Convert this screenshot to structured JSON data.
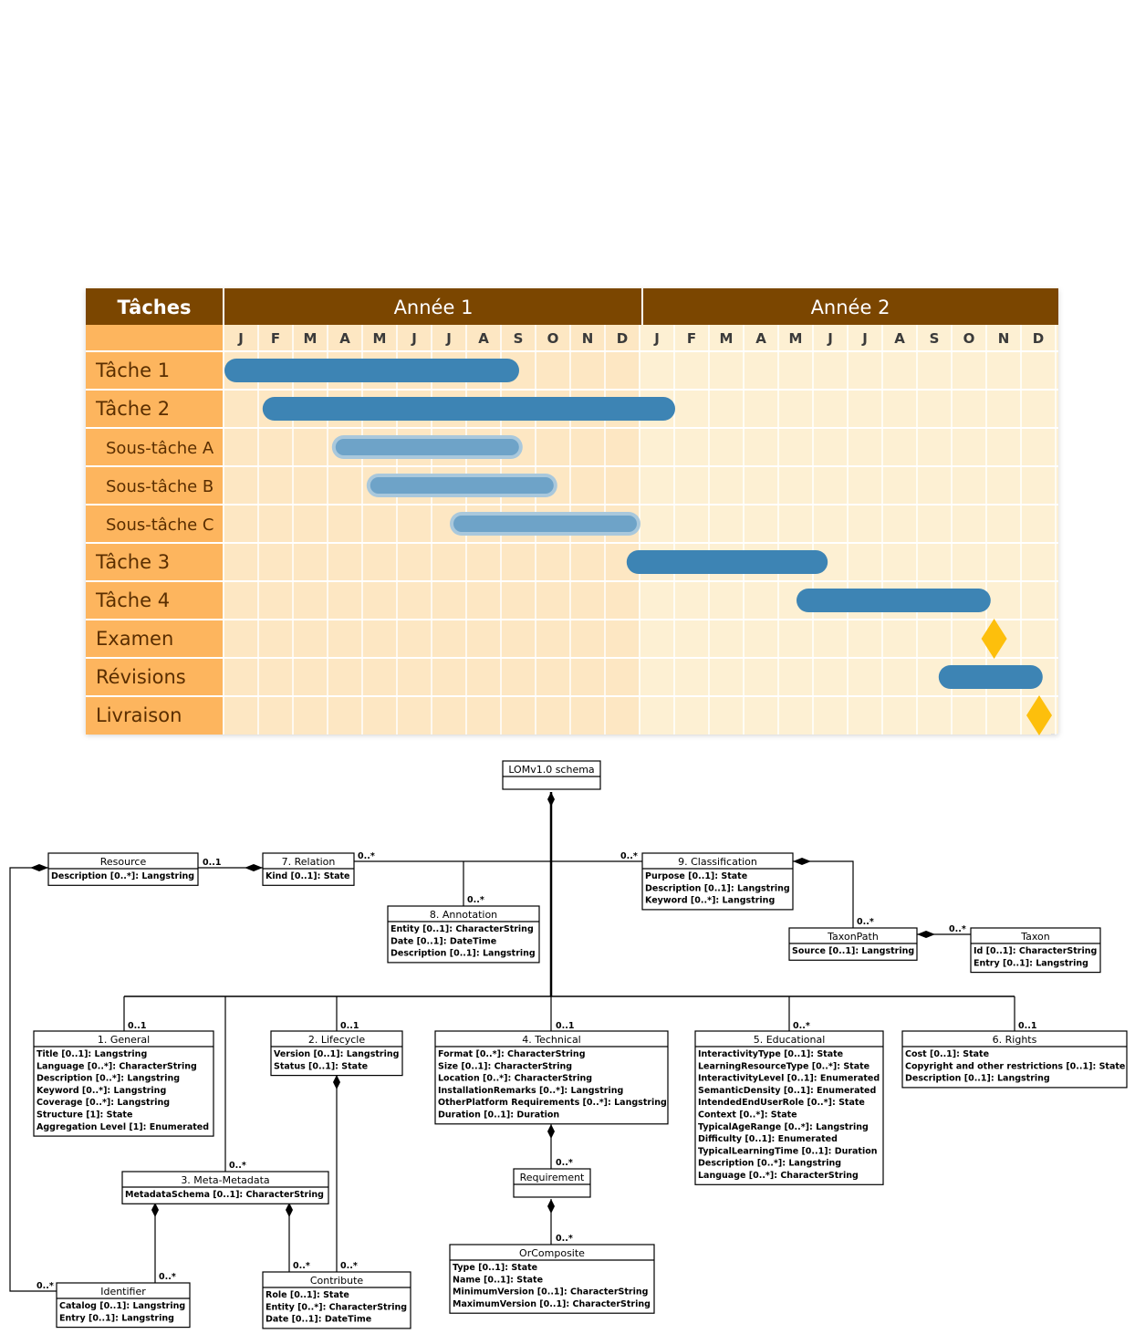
{
  "gantt": {
    "header": {
      "tasks": "Tâches",
      "year1": "Année 1",
      "year2": "Année 2"
    },
    "months": [
      "J",
      "F",
      "M",
      "A",
      "M",
      "J",
      "J",
      "A",
      "S",
      "O",
      "N",
      "D",
      "J",
      "F",
      "M",
      "A",
      "M",
      "J",
      "J",
      "A",
      "S",
      "O",
      "N",
      "D"
    ],
    "rows": [
      {
        "label": "Tâche 1",
        "kind": "task",
        "start": 0.0,
        "end": 8.5
      },
      {
        "label": "Tâche 2",
        "kind": "task",
        "start": 1.1,
        "end": 13.0
      },
      {
        "label": "Sous-tâche A",
        "kind": "subtask",
        "start": 3.1,
        "end": 8.6
      },
      {
        "label": "Sous-tâche B",
        "kind": "subtask",
        "start": 4.1,
        "end": 9.6
      },
      {
        "label": "Sous-tâche C",
        "kind": "subtask",
        "start": 6.5,
        "end": 12.0
      },
      {
        "label": "Tâche 3",
        "kind": "task",
        "start": 11.6,
        "end": 17.4
      },
      {
        "label": "Tâche 4",
        "kind": "task",
        "start": 16.5,
        "end": 22.1
      },
      {
        "label": "Examen",
        "kind": "milestone",
        "at": 22.2
      },
      {
        "label": "Révisions",
        "kind": "task",
        "start": 20.6,
        "end": 23.6
      },
      {
        "label": "Livraison",
        "kind": "milestone",
        "at": 23.5
      }
    ],
    "colors": {
      "header": "#7b4600",
      "label_bg": "#fdb55e",
      "grid_year1": "#fde7c3",
      "grid_year2": "#fdf0d3",
      "task_bar": "#3d84b4",
      "subtask_bar": "#6ea3c8",
      "milestone": "#fdbf0c"
    }
  },
  "uml": {
    "classes": [
      {
        "id": "lom",
        "title": "LOMv1.0 schema",
        "attrs": []
      },
      {
        "id": "resource",
        "title": "Resource",
        "attrs": [
          "Description [0..*]: Langstring"
        ]
      },
      {
        "id": "relation",
        "title": "7. Relation",
        "attrs": [
          "Kind [0..1]: State"
        ]
      },
      {
        "id": "annotation",
        "title": "8. Annotation",
        "attrs": [
          "Entity [0..1]: CharacterString",
          "Date [0..1]: DateTime",
          "Description [0..1]: Langstring"
        ]
      },
      {
        "id": "classification",
        "title": "9. Classification",
        "attrs": [
          "Purpose [0..1]: State",
          "Description [0..1]: Langstring",
          "Keyword [0..*]: Langstring"
        ]
      },
      {
        "id": "taxonpath",
        "title": "TaxonPath",
        "attrs": [
          "Source [0..1]: Langstring"
        ]
      },
      {
        "id": "taxon",
        "title": "Taxon",
        "attrs": [
          "Id [0..1]: CharacterString",
          "Entry [0..1]: Langstring"
        ]
      },
      {
        "id": "general",
        "title": "1. General",
        "attrs": [
          "Title [0..1]: Langstring",
          "Language [0..*]: CharacterString",
          "Description [0..*]: Langstring",
          "Keyword [0..*]: Langstring",
          "Coverage [0..*]: Langstring",
          "Structure [1]: State",
          "Aggregation Level [1]: Enumerated"
        ]
      },
      {
        "id": "lifecycle",
        "title": "2. Lifecycle",
        "attrs": [
          "Version [0..1]: Langstring",
          "Status [0..1]: State"
        ]
      },
      {
        "id": "technical",
        "title": "4. Technical",
        "attrs": [
          "Format [0..*]: CharacterString",
          "Size [0..1]: CharacterString",
          "Location [0..*]: CharacterString",
          "InstallationRemarks [0..*]: Langstring",
          "OtherPlatform Requirements [0..*]: Langstring",
          "Duration [0..1]: Duration"
        ]
      },
      {
        "id": "educational",
        "title": "5. Educational",
        "attrs": [
          "InteractivityType [0..1]: State",
          "LearningResourceType [0..*]: State",
          "InteractivityLevel [0..1]: Enumerated",
          "SemanticDensity [0..1]: Enumerated",
          "IntendedEndUserRole [0..*]: State",
          "Context [0..*]: State",
          "TypicalAgeRange [0..*]: Langstring",
          "Difficulty [0..1]: Enumerated",
          "TypicalLearningTime [0..1]: Duration",
          "Description [0..*]: Langstring",
          "Language [0..*]: CharacterString"
        ]
      },
      {
        "id": "rights",
        "title": "6. Rights",
        "attrs": [
          "Cost [0..1]: State",
          "Copyright and other restrictions [0..1]: State",
          "Description [0..1]: Langstring"
        ]
      },
      {
        "id": "metametadata",
        "title": "3. Meta-Metadata",
        "attrs": [
          "MetadataSchema [0..1]: CharacterString"
        ]
      },
      {
        "id": "requirement",
        "title": "Requirement",
        "attrs": []
      },
      {
        "id": "orcomposite",
        "title": "OrComposite",
        "attrs": [
          "Type [0..1]: State",
          "Name [0..1]: State",
          "MinimumVersion [0..1]: CharacterString",
          "MaximumVersion [0..1]: CharacterString"
        ]
      },
      {
        "id": "identifier",
        "title": "Identifier",
        "attrs": [
          "Catalog [0..1]: Langstring",
          "Entry [0..1]: Langstring"
        ]
      },
      {
        "id": "contribute",
        "title": "Contribute",
        "attrs": [
          "Role [0..1]: State",
          "Entity [0..*]: CharacterString",
          "Date [0..1]: DateTime"
        ]
      }
    ],
    "multiplicities": {
      "resource_relation": "0..1",
      "relation": "0..*",
      "annotation": "0..*",
      "classification": "0..*",
      "taxonpath": "0..*",
      "taxon": "0..*",
      "general": "0..1",
      "lifecycle": "0..1",
      "technical": "0..1",
      "educational": "0..*",
      "rights": "0..1",
      "metametadata": "0..*",
      "requirement": "0..*",
      "orcomposite": "0..*",
      "identifier_meta": "0..*",
      "identifier_resource": "0..*",
      "contribute_meta": "0..*",
      "contribute_lifecycle": "0..*"
    }
  }
}
